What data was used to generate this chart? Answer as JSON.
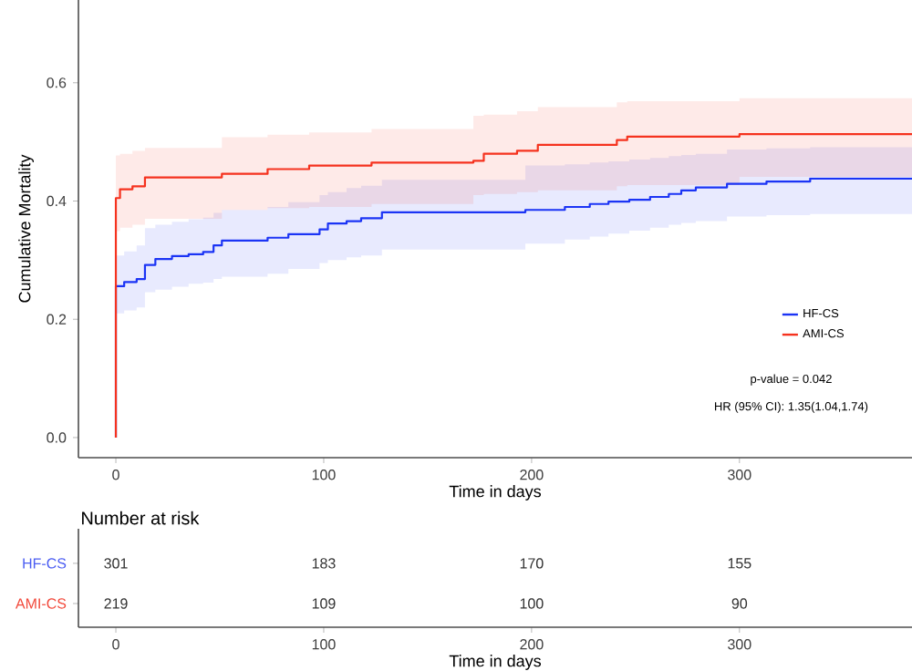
{
  "chart_data": [
    {
      "type": "step",
      "xlabel": "Time in days",
      "ylabel": "Cumulative Mortality",
      "xlim": [
        -18,
        383
      ],
      "ylim": [
        -0.034,
        0.74
      ],
      "xticks": [
        0,
        100,
        200,
        300
      ],
      "yticks": [
        {
          "value": 0,
          "label": "0.0"
        },
        {
          "value": 0.2,
          "label": "0.2"
        },
        {
          "value": 0.4,
          "label": "0.4"
        },
        {
          "value": 0.6,
          "label": "0.6"
        }
      ],
      "legend": "bottom right",
      "series": [
        {
          "name": "HF-CS",
          "color": "#1b34f5",
          "x": [
            0,
            0,
            4,
            10,
            14,
            19,
            27,
            35,
            42,
            47,
            51,
            73,
            83,
            98,
            102,
            111,
            118,
            128,
            197,
            216,
            228,
            237,
            247,
            257,
            266,
            272,
            279,
            294,
            313,
            334,
            383
          ],
          "values": [
            0,
            0.256,
            0.263,
            0.268,
            0.292,
            0.302,
            0.307,
            0.31,
            0.314,
            0.325,
            0.333,
            0.338,
            0.344,
            0.352,
            0.362,
            0.366,
            0.371,
            0.381,
            0.385,
            0.39,
            0.395,
            0.399,
            0.402,
            0.407,
            0.412,
            0.418,
            0.423,
            0.429,
            0.433,
            0.438,
            0.438
          ],
          "upper": [
            null,
            0.308,
            0.315,
            0.325,
            0.354,
            0.36,
            0.365,
            0.369,
            0.372,
            0.38,
            0.385,
            0.39,
            0.398,
            0.41,
            0.415,
            0.422,
            0.426,
            0.436,
            0.46,
            0.462,
            0.465,
            0.467,
            0.47,
            0.473,
            0.476,
            0.478,
            0.48,
            0.487,
            0.489,
            0.491,
            0.492
          ],
          "lower": [
            null,
            0.21,
            0.215,
            0.22,
            0.246,
            0.25,
            0.255,
            0.26,
            0.262,
            0.268,
            0.272,
            0.277,
            0.285,
            0.295,
            0.3,
            0.305,
            0.308,
            0.318,
            0.328,
            0.335,
            0.34,
            0.345,
            0.35,
            0.355,
            0.36,
            0.363,
            0.366,
            0.374,
            0.376,
            0.378,
            0.379
          ]
        },
        {
          "name": "AMI-CS",
          "color": "#f5321e",
          "x": [
            0,
            0,
            2,
            8,
            14,
            51,
            73,
            93,
            123,
            172,
            177,
            193,
            203,
            241,
            246,
            300,
            383
          ],
          "values": [
            0,
            0.405,
            0.42,
            0.425,
            0.44,
            0.446,
            0.454,
            0.46,
            0.465,
            0.468,
            0.48,
            0.485,
            0.495,
            0.503,
            0.509,
            0.513,
            0.513
          ],
          "upper": [
            null,
            0.477,
            0.48,
            0.485,
            0.49,
            0.508,
            0.512,
            0.516,
            0.522,
            0.544,
            0.546,
            0.552,
            0.559,
            0.567,
            0.569,
            0.574,
            0.574
          ],
          "lower": [
            null,
            0.349,
            0.355,
            0.36,
            0.37,
            0.385,
            0.388,
            0.39,
            0.395,
            0.41,
            0.412,
            0.415,
            0.418,
            0.425,
            0.427,
            0.441,
            0.441
          ]
        }
      ],
      "annotations": [
        "p-value = 0.042",
        "HR (95% CI): 1.35(1.04,1.74)"
      ]
    },
    {
      "type": "heatmap",
      "title": "Number at risk",
      "xlabel": "Time in days",
      "categories": [
        "0",
        "100",
        "200",
        "300"
      ],
      "y_categories": [
        "HF-CS",
        "AMI-CS"
      ],
      "colors": [
        "#4a5cf2",
        "#f2483a"
      ],
      "cells": [
        [
          301,
          183,
          170,
          155
        ],
        [
          219,
          109,
          100,
          90
        ]
      ],
      "data_labels": true
    }
  ]
}
